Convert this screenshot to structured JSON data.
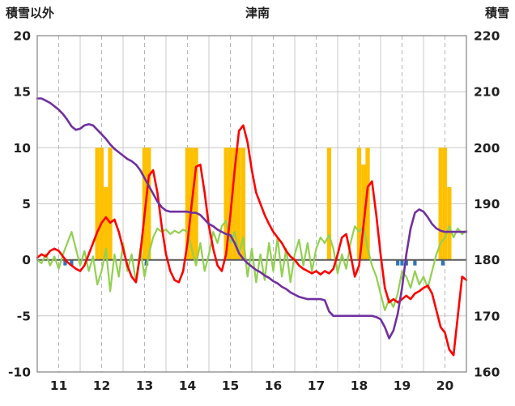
{
  "chart_data": {
    "type": "line",
    "title": "津南",
    "left_axis": {
      "title": "積雪以外",
      "min": -10,
      "max": 20,
      "ticks": [
        20,
        15,
        10,
        5,
        0,
        -5,
        -10
      ]
    },
    "right_axis": {
      "title": "積雪",
      "min": 160,
      "max": 220,
      "ticks": [
        220,
        210,
        200,
        190,
        180,
        170,
        160
      ]
    },
    "x_axis": {
      "min": 10.5,
      "max": 20.5,
      "tick_labels": [
        11,
        12,
        13,
        14,
        15,
        16,
        17,
        18,
        19,
        20
      ]
    },
    "grid": true,
    "legend": "none",
    "colors": {
      "red_line": "#FF0000",
      "green_line": "#92D050",
      "purple_line": "#7030A0",
      "orange_bars": "#FFC000",
      "blue_bars": "#2E75B6",
      "grid": "#C8C8C8",
      "grid_dashed": "#B5B5B5",
      "zero_line": "#595959",
      "frame": "#8A8A8A",
      "text": "#1F1F1F"
    },
    "sampling": {
      "t_start": 10.5,
      "t_step": 0.1
    },
    "series": [
      {
        "name": "red-line",
        "axis": "left",
        "color_key": "red_line",
        "values": [
          0.2,
          0.5,
          0.3,
          0.8,
          1.0,
          0.8,
          0.3,
          -0.2,
          -0.5,
          -0.8,
          -1.0,
          -0.5,
          0.5,
          1.5,
          2.5,
          3.3,
          3.8,
          3.3,
          3.6,
          2.5,
          1.0,
          -0.5,
          -1.5,
          -2.0,
          0.5,
          4.0,
          7.5,
          8.0,
          6.0,
          3.0,
          0.5,
          -1.0,
          -1.8,
          -2.0,
          -1.0,
          1.5,
          5.0,
          8.3,
          8.5,
          6.0,
          3.0,
          1.0,
          -0.5,
          -1.0,
          0.5,
          4.0,
          8.0,
          11.5,
          12.0,
          10.5,
          8.0,
          6.0,
          5.0,
          4.0,
          3.2,
          2.5,
          2.0,
          1.5,
          0.8,
          0.3,
          0.0,
          -0.5,
          -0.8,
          -1.0,
          -1.2,
          -1.0,
          -1.3,
          -1.0,
          -1.2,
          -0.8,
          0.5,
          2.0,
          2.3,
          0.5,
          -1.5,
          -0.5,
          3.0,
          6.5,
          7.0,
          4.0,
          0.5,
          -2.5,
          -3.8,
          -3.5,
          -3.8,
          -3.5,
          -3.2,
          -3.5,
          -3.0,
          -2.8,
          -2.5,
          -2.3,
          -3.0,
          -4.5,
          -6.0,
          -6.5,
          -8.0,
          -8.5,
          -5.0,
          -1.5,
          -1.8
        ]
      },
      {
        "name": "green-line",
        "axis": "left",
        "color_key": "green_line",
        "values": [
          0.0,
          -0.3,
          0.5,
          -0.5,
          0.3,
          -0.8,
          0.5,
          1.5,
          2.5,
          1.0,
          -0.5,
          0.8,
          -1.0,
          0.3,
          -2.2,
          -1.0,
          1.0,
          -2.8,
          0.5,
          -1.5,
          1.5,
          -1.0,
          0.5,
          -2.0,
          1.0,
          -1.5,
          0.5,
          2.0,
          2.8,
          2.5,
          2.7,
          2.3,
          2.6,
          2.4,
          2.7,
          2.5,
          1.0,
          -0.5,
          1.5,
          -1.0,
          0.5,
          2.5,
          1.5,
          3.0,
          3.5,
          1.5,
          2.5,
          0.5,
          2.0,
          -1.5,
          1.0,
          -2.0,
          0.5,
          -1.8,
          1.5,
          -1.0,
          2.0,
          -1.5,
          1.0,
          -2.0,
          0.5,
          1.8,
          -0.5,
          1.5,
          -1.0,
          1.0,
          2.0,
          1.5,
          2.2,
          1.0,
          -1.2,
          0.5,
          -0.8,
          1.5,
          3.0,
          2.5,
          3.0,
          1.0,
          -0.5,
          -1.5,
          -3.0,
          -4.5,
          -3.5,
          -4.2,
          -3.0,
          -1.0,
          -1.5,
          -2.5,
          -1.0,
          -2.2,
          -1.5,
          -2.5,
          -1.0,
          0.5,
          1.5,
          2.0,
          3.0,
          2.0,
          2.8,
          2.3,
          2.6
        ]
      },
      {
        "name": "purple-line",
        "axis": "right",
        "color_key": "purple_line",
        "values": [
          208.8,
          208.8,
          208.4,
          208.0,
          207.4,
          206.8,
          206.0,
          205.0,
          203.8,
          203.2,
          203.4,
          204.0,
          204.2,
          204.0,
          203.2,
          202.4,
          201.6,
          200.6,
          199.8,
          199.2,
          198.6,
          198.0,
          197.6,
          197.0,
          196.0,
          194.6,
          193.2,
          191.8,
          190.4,
          189.4,
          188.8,
          188.6,
          188.6,
          188.6,
          188.6,
          188.6,
          188.4,
          188.4,
          188.0,
          187.2,
          186.4,
          186.0,
          185.4,
          185.0,
          184.6,
          184.4,
          183.0,
          181.2,
          180.2,
          179.4,
          178.8,
          178.2,
          177.8,
          177.2,
          176.8,
          176.2,
          175.8,
          175.2,
          174.8,
          174.2,
          173.8,
          173.4,
          173.2,
          173.0,
          173.0,
          173.0,
          173.0,
          172.8,
          170.8,
          170.0,
          170.0,
          170.0,
          170.0,
          170.0,
          170.0,
          170.0,
          170.0,
          170.0,
          170.0,
          169.8,
          169.4,
          168.0,
          166.0,
          167.4,
          170.4,
          175.0,
          181.0,
          185.6,
          188.4,
          189.0,
          188.6,
          187.6,
          186.4,
          185.6,
          185.2,
          185.0,
          185.0,
          185.0,
          185.0,
          185.0,
          185.0
        ]
      }
    ],
    "orange_bars": {
      "axis": "left",
      "width_h": 0.1,
      "points": [
        [
          11.9,
          10
        ],
        [
          12.0,
          10
        ],
        [
          12.1,
          6.5
        ],
        [
          12.2,
          10
        ],
        [
          13.0,
          10
        ],
        [
          13.1,
          10
        ],
        [
          14.0,
          10
        ],
        [
          14.1,
          10
        ],
        [
          14.2,
          10
        ],
        [
          14.9,
          10
        ],
        [
          15.0,
          10
        ],
        [
          15.1,
          10
        ],
        [
          15.2,
          10
        ],
        [
          15.3,
          10
        ],
        [
          17.3,
          10
        ],
        [
          18.0,
          10
        ],
        [
          18.1,
          8.5
        ],
        [
          18.2,
          10
        ],
        [
          19.9,
          10
        ],
        [
          20.0,
          10
        ],
        [
          20.1,
          6.5
        ]
      ]
    },
    "blue_bars": {
      "axis": "left",
      "width_h": 0.08,
      "points": [
        [
          11.15,
          -0.5
        ],
        [
          11.3,
          -0.5
        ],
        [
          13.05,
          -0.5
        ],
        [
          18.9,
          -0.5
        ],
        [
          19.0,
          -0.5
        ],
        [
          19.1,
          -0.5
        ],
        [
          19.3,
          -0.5
        ],
        [
          19.95,
          -0.5
        ]
      ]
    }
  }
}
